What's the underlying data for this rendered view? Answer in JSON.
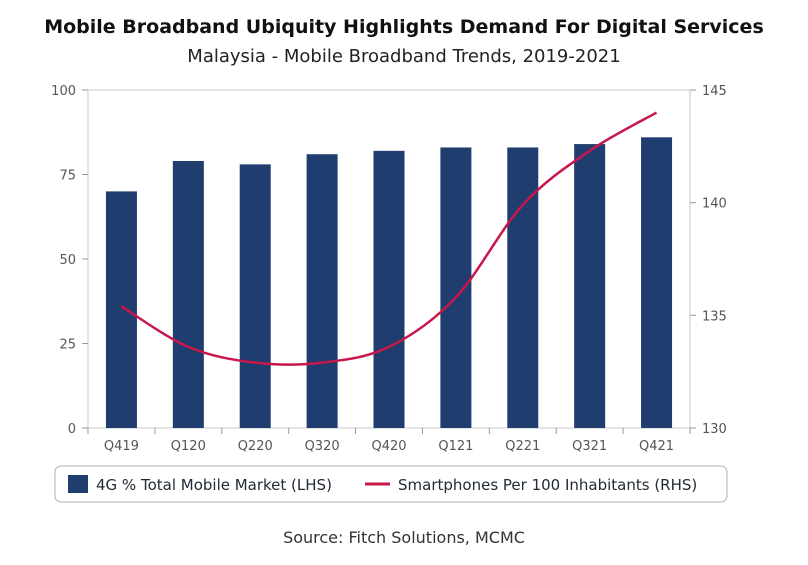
{
  "header": {
    "title": "Mobile Broadband Ubiquity Highlights Demand For Digital Services",
    "subtitle": "Malaysia - Mobile Broadband Trends, 2019-2021"
  },
  "footer": {
    "source": "Source: Fitch Solutions, MCMC"
  },
  "chart_data": {
    "type": "bar",
    "title": "Mobile Broadband Ubiquity Highlights Demand For Digital Services",
    "subtitle": "Malaysia - Mobile Broadband Trends, 2019-2021",
    "categories": [
      "Q419",
      "Q120",
      "Q220",
      "Q320",
      "Q420",
      "Q121",
      "Q221",
      "Q321",
      "Q421"
    ],
    "series": [
      {
        "name": "4G % Total Mobile Market (LHS)",
        "type": "bar",
        "axis": "left",
        "color": "#1f3d6e",
        "values": [
          70,
          79,
          78,
          81,
          82,
          83,
          83,
          84,
          86
        ]
      },
      {
        "name": "Smartphones Per 100 Inhabitants (RHS)",
        "type": "line",
        "axis": "right",
        "color": "#c8174a",
        "values": [
          135.4,
          133.6,
          132.9,
          132.9,
          133.6,
          135.8,
          139.9,
          142.3,
          144.0
        ]
      }
    ],
    "y_left": {
      "ylim": [
        0,
        100
      ],
      "ticks": [
        0,
        25,
        50,
        75,
        100
      ]
    },
    "y_right": {
      "ylim": [
        130,
        145
      ],
      "ticks": [
        130,
        135,
        140,
        145
      ]
    },
    "grid": false,
    "legend": "bottom"
  }
}
